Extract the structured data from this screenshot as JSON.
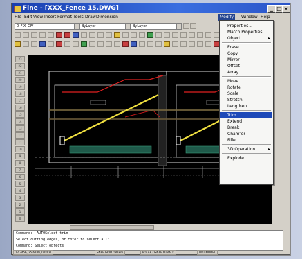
{
  "window": {
    "title": "Fine - [XXX_Fence 15.DWG]",
    "controls": [
      "_",
      "□",
      "×"
    ]
  },
  "menubar": [
    "File",
    "Edit",
    "View",
    "Insert",
    "Format",
    "Tools",
    "Draw",
    "Dimension",
    "Modify",
    "Window",
    "Help"
  ],
  "active_menu_index": 8,
  "toolbar1": {
    "layer_combo": "0_FIX_CIV",
    "color_combo": "ByLayer",
    "linetype_combo": "ByLayer"
  },
  "left_ruler": [
    "23",
    "22",
    "21",
    "20",
    "19",
    "18",
    "17",
    "16",
    "15",
    "14",
    "13",
    "12",
    "11",
    "10",
    "9",
    "8",
    "7",
    "6",
    "5",
    "4",
    "3",
    "2",
    "1",
    "0"
  ],
  "dropdown": {
    "items": [
      {
        "label": "Properties...",
        "type": "item"
      },
      {
        "label": "Match Properties",
        "type": "item"
      },
      {
        "label": "Object",
        "type": "submenu"
      },
      {
        "type": "sep"
      },
      {
        "label": "Erase",
        "type": "item"
      },
      {
        "label": "Copy",
        "type": "item"
      },
      {
        "label": "Mirror",
        "type": "item"
      },
      {
        "label": "Offset",
        "type": "item"
      },
      {
        "label": "Array",
        "type": "item"
      },
      {
        "type": "sep"
      },
      {
        "label": "Move",
        "type": "item"
      },
      {
        "label": "Rotate",
        "type": "item"
      },
      {
        "label": "Scale",
        "type": "item"
      },
      {
        "label": "Stretch",
        "type": "item"
      },
      {
        "label": "Lengthen",
        "type": "item"
      },
      {
        "type": "sep"
      },
      {
        "label": "Trim",
        "type": "item",
        "selected": true
      },
      {
        "label": "Extend",
        "type": "item"
      },
      {
        "label": "Break",
        "type": "item"
      },
      {
        "label": "Chamfer",
        "type": "item"
      },
      {
        "label": "Fillet",
        "type": "item"
      },
      {
        "type": "sep"
      },
      {
        "label": "3D Operation",
        "type": "submenu"
      },
      {
        "type": "sep"
      },
      {
        "label": "Explode",
        "type": "item"
      }
    ]
  },
  "command_lines": [
    "Command: _AUTOSelect trim",
    "Select cutting edges, or Enter to select all:",
    "Command: Select objects"
  ],
  "status": [
    "12.3456, 25.6789, 0.0000",
    "SNAP GRID ORTHO",
    "POLAR OSNAP OTRACK",
    "LWT MODEL"
  ],
  "colors": {
    "title_start": "#1a3fb0",
    "menu_highlight": "#1d49b8",
    "canvas_bg": "#000000",
    "cad_yellow": "#f0e040",
    "cad_red": "#e02020",
    "cad_white": "#ffffff"
  }
}
